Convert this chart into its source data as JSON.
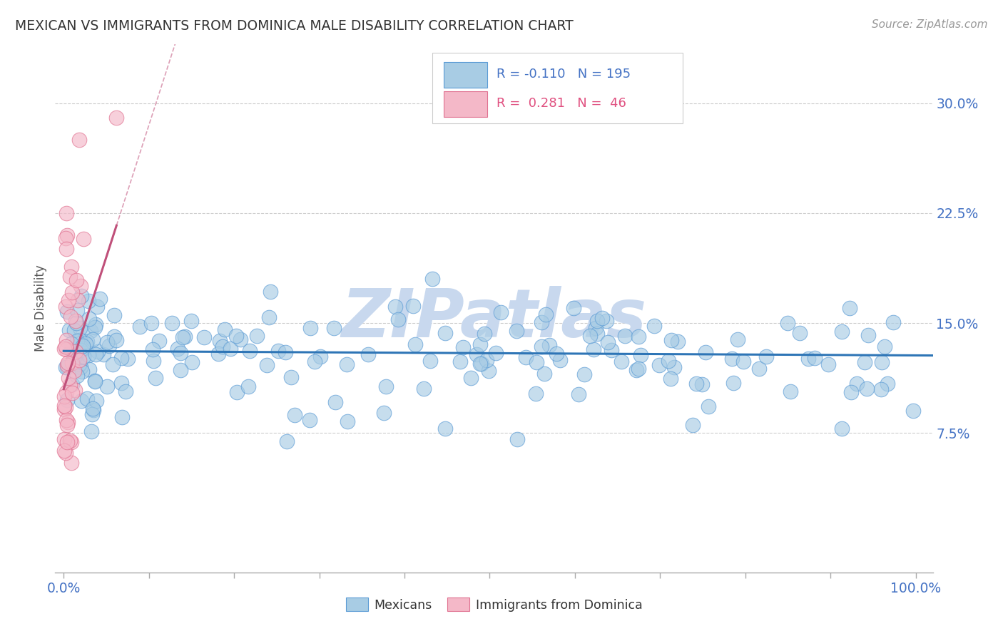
{
  "title": "MEXICAN VS IMMIGRANTS FROM DOMINICA MALE DISABILITY CORRELATION CHART",
  "source": "Source: ZipAtlas.com",
  "ylabel": "Male Disability",
  "xlim": [
    -0.01,
    1.02
  ],
  "ylim": [
    -0.02,
    0.34
  ],
  "yticks": [
    0.075,
    0.15,
    0.225,
    0.3
  ],
  "ytick_labels": [
    "7.5%",
    "15.0%",
    "22.5%",
    "30.0%"
  ],
  "blue_scatter_color": "#a8cce4",
  "blue_edge_color": "#5b9bd5",
  "pink_scatter_color": "#f4b8c8",
  "pink_edge_color": "#e07090",
  "blue_line_color": "#2e75b6",
  "pink_line_color": "#c0507a",
  "R_blue": -0.11,
  "N_blue": 195,
  "R_pink": 0.281,
  "N_pink": 46,
  "watermark_text": "ZIPatlas",
  "watermark_color": "#c8d8ee",
  "background_color": "#ffffff",
  "grid_color": "#cccccc",
  "title_color": "#333333",
  "right_tick_color": "#4472c4",
  "bottom_tick_label_color": "#4472c4",
  "legend_text_blue_color": "#4472c4",
  "legend_text_pink_color": "#e05080"
}
